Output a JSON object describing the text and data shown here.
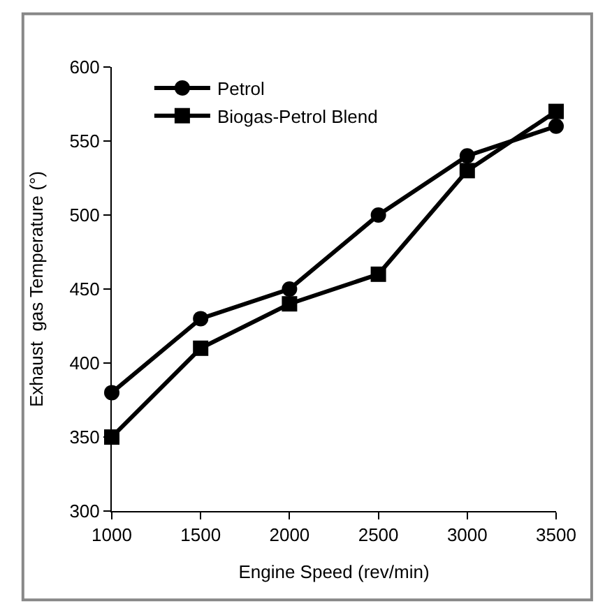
{
  "chart_data": {
    "type": "line",
    "xlabel": "Engine Speed (rev/min)",
    "ylabel": "Exhaust  gas Temperature (°)",
    "x": [
      1000,
      1500,
      2000,
      2500,
      3000,
      3500
    ],
    "series": [
      {
        "name": "Petrol",
        "color": "#000000",
        "marker": "circle",
        "values": [
          380,
          430,
          450,
          500,
          540,
          560
        ]
      },
      {
        "name": "Biogas-Petrol Blend",
        "color": "#000000",
        "marker": "square",
        "values": [
          350,
          410,
          440,
          460,
          530,
          570
        ]
      }
    ],
    "xlim": [
      1000,
      3500
    ],
    "xticks": [
      1000,
      1500,
      2000,
      2500,
      3000,
      3500
    ],
    "ylim": [
      300,
      600
    ],
    "yticks": [
      300,
      350,
      400,
      450,
      500,
      550,
      600
    ],
    "grid": false,
    "legend": "top left",
    "line_style": "solid"
  }
}
